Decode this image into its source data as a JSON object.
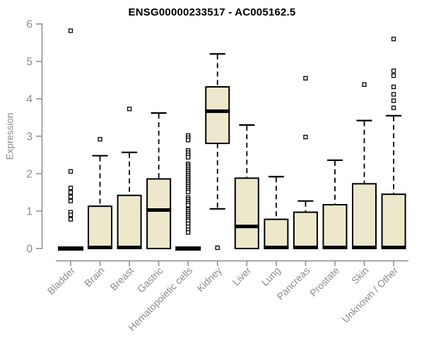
{
  "chart_data": {
    "type": "boxplot",
    "title": "ENSG00000233517 - AC005162.5",
    "ylabel": "Expression",
    "xlabel": "",
    "ylim": [
      0,
      6
    ],
    "y_ticks": [
      0,
      1,
      2,
      3,
      4,
      5,
      6
    ],
    "grid": "off",
    "legend": "none",
    "categories": [
      "Bladder",
      "Brain",
      "Breast",
      "Gastric",
      "Hematopoietic cells",
      "Kidney",
      "Liver",
      "Lung",
      "Pancreas",
      "Prostate",
      "Skin",
      "Unknown / Other"
    ],
    "series": [
      {
        "category": "Bladder",
        "whisker_low": 0,
        "q1": 0,
        "median": 0,
        "q3": 0,
        "whisker_high": 0,
        "outliers": [
          5.82,
          2.06,
          1.62,
          1.5,
          1.38,
          1.27,
          0.97,
          0.9,
          0.78
        ]
      },
      {
        "category": "Brain",
        "whisker_low": 0,
        "q1": 0,
        "median": 0.02,
        "q3": 1.13,
        "whisker_high": 2.48,
        "outliers": [
          2.92
        ]
      },
      {
        "category": "Breast",
        "whisker_low": 0,
        "q1": 0,
        "median": 0.02,
        "q3": 1.42,
        "whisker_high": 2.57,
        "outliers": [
          3.73
        ]
      },
      {
        "category": "Gastric",
        "whisker_low": 0,
        "q1": 0,
        "median": 1.02,
        "q3": 1.86,
        "whisker_high": 3.62,
        "outliers": []
      },
      {
        "category": "Hematopoietic cells",
        "whisker_low": 0,
        "q1": 0,
        "median": 0,
        "q3": 0,
        "whisker_high": 0,
        "outliers": [
          3.02,
          2.96,
          2.9,
          2.62,
          2.56,
          2.5,
          2.44,
          2.26,
          2.21,
          2.16,
          2.11,
          2.06,
          2.01,
          1.96,
          1.91,
          1.86,
          1.81,
          1.76,
          1.71,
          1.66,
          1.61,
          1.56,
          1.51,
          1.36,
          1.31,
          1.26,
          1.21,
          1.16,
          1.04,
          0.99,
          0.94,
          0.89,
          0.84,
          0.79,
          0.74,
          0.66,
          0.58,
          0.5,
          0.43
        ]
      },
      {
        "category": "Kidney",
        "whisker_low": 1.06,
        "q1": 2.81,
        "median": 3.66,
        "q3": 4.32,
        "whisker_high": 5.2,
        "outliers": [
          0.02
        ]
      },
      {
        "category": "Liver",
        "whisker_low": 0,
        "q1": 0,
        "median": 0.58,
        "q3": 1.88,
        "whisker_high": 3.3,
        "outliers": []
      },
      {
        "category": "Lung",
        "whisker_low": 0,
        "q1": 0,
        "median": 0.02,
        "q3": 0.78,
        "whisker_high": 1.92,
        "outliers": []
      },
      {
        "category": "Pancreas",
        "whisker_low": 0,
        "q1": 0,
        "median": 0.02,
        "q3": 0.97,
        "whisker_high": 1.27,
        "outliers": [
          4.55,
          2.98
        ]
      },
      {
        "category": "Prostate",
        "whisker_low": 0,
        "q1": 0,
        "median": 0.02,
        "q3": 1.17,
        "whisker_high": 2.36,
        "outliers": []
      },
      {
        "category": "Skin",
        "whisker_low": 0,
        "q1": 0,
        "median": 0.02,
        "q3": 1.73,
        "whisker_high": 3.42,
        "outliers": [
          4.38
        ]
      },
      {
        "category": "Unknown / Other",
        "whisker_low": 0,
        "q1": 0,
        "median": 0.02,
        "q3": 1.45,
        "whisker_high": 3.55,
        "outliers": [
          5.6,
          4.75,
          4.62,
          4.32,
          4.12,
          3.95,
          3.76
        ]
      }
    ],
    "style": {
      "box_fill": "#EDE8CC",
      "box_stroke": "#000000",
      "median_color": "#000000",
      "whisker_color": "#000000",
      "outlier_stroke": "#000000",
      "outlier_fill": "#ffffff",
      "axis_color": "#8c8c8c",
      "tick_label_color": "#8c8c8c",
      "title_color": "#000000",
      "background": "#ffffff"
    }
  }
}
